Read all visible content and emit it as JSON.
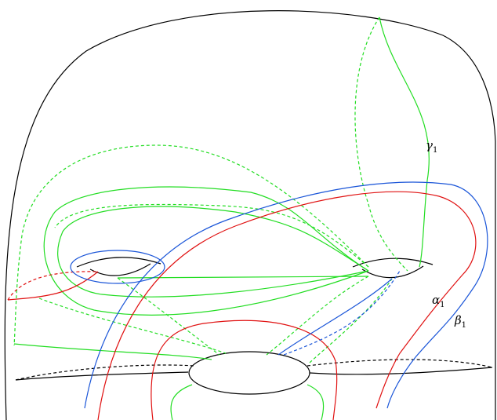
{
  "labels": {
    "gamma": {
      "symbol": "γ",
      "subscript": "1"
    },
    "alpha": {
      "symbol": "α",
      "subscript": "1"
    },
    "beta": {
      "symbol": "β",
      "subscript": "1"
    }
  }
}
